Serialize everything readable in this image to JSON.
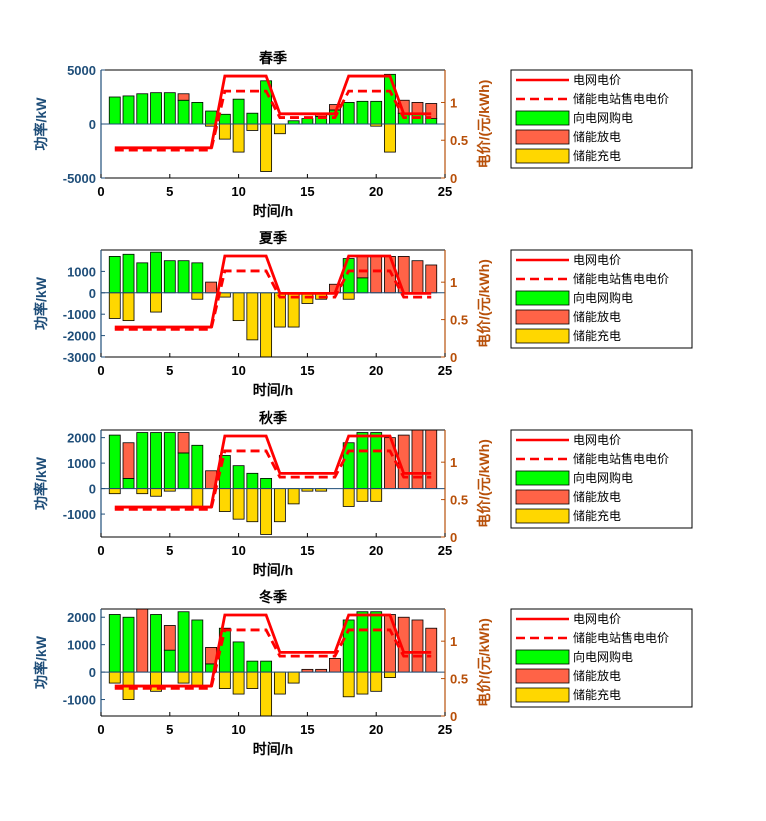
{
  "colors": {
    "grid_price": "#ff0000",
    "buy": "#00ff00",
    "discharge": "#ff6347",
    "charge": "#ffd700",
    "left_axis": "#1f4e79",
    "right_axis": "#b8500a"
  },
  "legend_labels": [
    "电网电价",
    "储能电站售电电价",
    "向电网购电",
    "储能放电",
    "储能充电"
  ],
  "chart_data": [
    {
      "type": "bar",
      "title": "春季",
      "xlabel": "时间/h",
      "ylabel": "功率/kW",
      "y2label": "电价/(元/kWh)",
      "xlim": [
        0,
        25
      ],
      "ylim": [
        -5000,
        5000
      ],
      "y2lim": [
        0,
        1.43
      ],
      "xticks": [
        "0",
        "5",
        "10",
        "15",
        "20",
        "25"
      ],
      "yticks": [
        -5000,
        0,
        5000
      ],
      "yticklabels": [
        "-5000",
        "0",
        "5000"
      ],
      "y2ticks": [
        0,
        0.5,
        1
      ],
      "y2ticklabels": [
        "0",
        "0.5",
        "1"
      ],
      "hours": [
        1,
        2,
        3,
        4,
        5,
        6,
        7,
        8,
        9,
        10,
        11,
        12,
        13,
        14,
        15,
        16,
        17,
        18,
        19,
        20,
        21,
        22,
        23,
        24
      ],
      "buy": [
        2500,
        2600,
        2800,
        2900,
        2900,
        2200,
        2000,
        1200,
        900,
        2300,
        1000,
        4000,
        0,
        300,
        500,
        700,
        1300,
        2000,
        2100,
        2100,
        4600,
        1000,
        900,
        500
      ],
      "discharge": [
        0,
        0,
        0,
        0,
        0,
        600,
        0,
        0,
        0,
        0,
        0,
        0,
        0,
        0,
        0,
        200,
        500,
        0,
        0,
        0,
        0,
        1200,
        1100,
        1400
      ],
      "charge": [
        0,
        0,
        0,
        0,
        0,
        0,
        0,
        -200,
        -1400,
        -2600,
        -600,
        -4400,
        -900,
        0,
        0,
        0,
        0,
        0,
        0,
        -200,
        -2600,
        0,
        0,
        0
      ],
      "grid_price": [
        0.4,
        0.4,
        0.4,
        0.4,
        0.4,
        0.4,
        0.4,
        0.4,
        1.35,
        1.35,
        1.35,
        1.35,
        0.85,
        0.85,
        0.85,
        0.85,
        0.85,
        1.35,
        1.35,
        1.35,
        1.35,
        0.85,
        0.85,
        0.85
      ],
      "storage_price": [
        0.37,
        0.37,
        0.37,
        0.37,
        0.37,
        0.37,
        0.37,
        0.37,
        1.15,
        1.15,
        1.15,
        1.15,
        0.8,
        0.8,
        0.8,
        0.8,
        0.8,
        1.15,
        1.15,
        1.15,
        1.15,
        0.8,
        0.8,
        0.8
      ]
    },
    {
      "type": "bar",
      "title": "夏季",
      "xlabel": "时间/h",
      "ylabel": "功率/kW",
      "y2label": "电价/(元/kWh)",
      "xlim": [
        0,
        25
      ],
      "ylim": [
        -3000,
        2000
      ],
      "y2lim": [
        0,
        1.43
      ],
      "xticks": [
        "0",
        "5",
        "10",
        "15",
        "20",
        "25"
      ],
      "yticks": [
        -3000,
        -2000,
        -1000,
        0,
        1000
      ],
      "yticklabels": [
        "-3000",
        "-2000",
        "-1000",
        "0",
        "1000"
      ],
      "y2ticks": [
        0,
        0.5,
        1
      ],
      "y2ticklabels": [
        "0",
        "0.5",
        "1"
      ],
      "hours": [
        1,
        2,
        3,
        4,
        5,
        6,
        7,
        8,
        9,
        10,
        11,
        12,
        13,
        14,
        15,
        16,
        17,
        18,
        19,
        20,
        21,
        22,
        23,
        24
      ],
      "buy": [
        1700,
        1800,
        1400,
        1900,
        1500,
        1500,
        1400,
        0,
        0,
        0,
        0,
        0,
        0,
        0,
        0,
        0,
        0,
        1600,
        700,
        0,
        0,
        0,
        0,
        0
      ],
      "discharge": [
        0,
        0,
        0,
        0,
        0,
        0,
        0,
        500,
        0,
        0,
        0,
        0,
        0,
        0,
        0,
        0,
        400,
        0,
        1000,
        1700,
        1700,
        1700,
        1500,
        1300
      ],
      "charge": [
        -1200,
        -1300,
        0,
        -900,
        0,
        0,
        -300,
        0,
        -200,
        -1300,
        -2200,
        -3000,
        -1600,
        -1600,
        -500,
        -300,
        0,
        -300,
        0,
        0,
        0,
        0,
        0,
        0
      ],
      "grid_price": [
        0.4,
        0.4,
        0.4,
        0.4,
        0.4,
        0.4,
        0.4,
        0.4,
        1.35,
        1.35,
        1.35,
        1.35,
        0.85,
        0.85,
        0.85,
        0.85,
        0.85,
        1.35,
        1.35,
        1.35,
        1.35,
        0.85,
        0.85,
        0.85
      ],
      "storage_price": [
        0.37,
        0.37,
        0.37,
        0.37,
        0.37,
        0.37,
        0.37,
        0.37,
        1.15,
        1.15,
        1.15,
        1.15,
        0.8,
        0.8,
        0.8,
        0.8,
        0.8,
        1.15,
        1.15,
        1.15,
        1.15,
        0.8,
        0.8,
        0.8
      ]
    },
    {
      "type": "bar",
      "title": "秋季",
      "xlabel": "时间/h",
      "ylabel": "功率/kW",
      "y2label": "电价/(元/kWh)",
      "xlim": [
        0,
        25
      ],
      "ylim": [
        -1900,
        2300
      ],
      "y2lim": [
        0,
        1.43
      ],
      "xticks": [
        "0",
        "5",
        "10",
        "15",
        "20",
        "25"
      ],
      "yticks": [
        -1000,
        0,
        1000,
        2000
      ],
      "yticklabels": [
        "-1000",
        "0",
        "1000",
        "2000"
      ],
      "y2ticks": [
        0,
        0.5,
        1
      ],
      "y2ticklabels": [
        "0",
        "0.5",
        "1"
      ],
      "hours": [
        1,
        2,
        3,
        4,
        5,
        6,
        7,
        8,
        9,
        10,
        11,
        12,
        13,
        14,
        15,
        16,
        17,
        18,
        19,
        20,
        21,
        22,
        23,
        24
      ],
      "buy": [
        2100,
        400,
        2200,
        2200,
        2200,
        1400,
        1700,
        0,
        1300,
        900,
        600,
        400,
        0,
        0,
        0,
        0,
        0,
        1800,
        2200,
        2200,
        0,
        0,
        0,
        0
      ],
      "discharge": [
        0,
        1400,
        0,
        0,
        0,
        800,
        0,
        700,
        0,
        0,
        0,
        0,
        0,
        0,
        0,
        0,
        0,
        0,
        0,
        0,
        2000,
        2100,
        2300,
        2300
      ],
      "charge": [
        -200,
        0,
        -200,
        -300,
        -100,
        0,
        -700,
        0,
        -900,
        -1200,
        -1300,
        -1800,
        -1300,
        -600,
        -100,
        -100,
        0,
        -700,
        -500,
        -500,
        0,
        0,
        0,
        0
      ],
      "grid_price": [
        0.4,
        0.4,
        0.4,
        0.4,
        0.4,
        0.4,
        0.4,
        0.4,
        1.35,
        1.35,
        1.35,
        1.35,
        0.85,
        0.85,
        0.85,
        0.85,
        0.85,
        1.35,
        1.35,
        1.35,
        1.35,
        0.85,
        0.85,
        0.85
      ],
      "storage_price": [
        0.37,
        0.37,
        0.37,
        0.37,
        0.37,
        0.37,
        0.37,
        0.37,
        1.15,
        1.15,
        1.15,
        1.15,
        0.8,
        0.8,
        0.8,
        0.8,
        0.8,
        1.15,
        1.15,
        1.15,
        1.15,
        0.8,
        0.8,
        0.8
      ]
    },
    {
      "type": "bar",
      "title": "冬季",
      "xlabel": "时间/h",
      "ylabel": "功率/kW",
      "y2label": "电价/(元/kWh)",
      "xlim": [
        0,
        25
      ],
      "ylim": [
        -1600,
        2300
      ],
      "y2lim": [
        0,
        1.43
      ],
      "xticks": [
        "0",
        "5",
        "10",
        "15",
        "20",
        "25"
      ],
      "yticks": [
        -1000,
        0,
        1000,
        2000
      ],
      "yticklabels": [
        "-1000",
        "0",
        "1000",
        "2000"
      ],
      "y2ticks": [
        0,
        0.5,
        1
      ],
      "y2ticklabels": [
        "0",
        "0.5",
        "1"
      ],
      "hours": [
        1,
        2,
        3,
        4,
        5,
        6,
        7,
        8,
        9,
        10,
        11,
        12,
        13,
        14,
        15,
        16,
        17,
        18,
        19,
        20,
        21,
        22,
        23,
        24
      ],
      "buy": [
        2100,
        2000,
        0,
        2100,
        800,
        2200,
        1900,
        300,
        1600,
        1100,
        400,
        400,
        0,
        0,
        0,
        0,
        0,
        1900,
        2200,
        2200,
        0,
        0,
        0,
        0
      ],
      "discharge": [
        0,
        0,
        2300,
        0,
        900,
        0,
        0,
        600,
        0,
        0,
        0,
        0,
        0,
        0,
        100,
        100,
        500,
        0,
        0,
        0,
        2100,
        2000,
        1900,
        1600
      ],
      "charge": [
        -400,
        -1000,
        0,
        -700,
        0,
        -400,
        -500,
        0,
        -600,
        -800,
        -600,
        -1600,
        -800,
        -400,
        0,
        0,
        0,
        -900,
        -800,
        -700,
        -200,
        0,
        0,
        0
      ],
      "grid_price": [
        0.4,
        0.4,
        0.4,
        0.4,
        0.4,
        0.4,
        0.4,
        0.4,
        1.35,
        1.35,
        1.35,
        1.35,
        0.85,
        0.85,
        0.85,
        0.85,
        0.85,
        1.35,
        1.35,
        1.35,
        1.35,
        0.85,
        0.85,
        0.85
      ],
      "storage_price": [
        0.37,
        0.37,
        0.37,
        0.37,
        0.37,
        0.37,
        0.37,
        0.37,
        1.15,
        1.15,
        1.15,
        1.15,
        0.8,
        0.8,
        0.8,
        0.8,
        0.8,
        1.15,
        1.15,
        1.15,
        1.15,
        0.8,
        0.8,
        0.8
      ]
    }
  ]
}
